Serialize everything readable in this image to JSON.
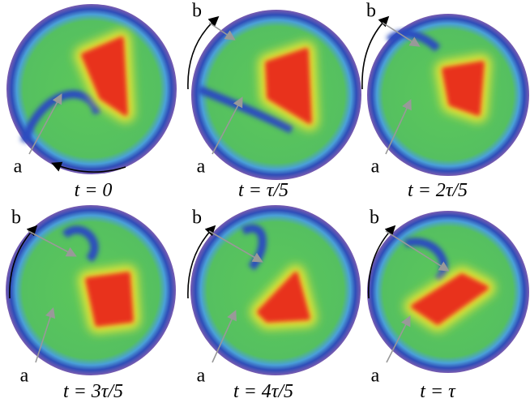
{
  "figure": {
    "panels": [
      {
        "caption": "t = 0",
        "labels": [
          "a"
        ]
      },
      {
        "caption": "t = τ/5",
        "labels": [
          "a",
          "b"
        ]
      },
      {
        "caption": "t = 2τ/5",
        "labels": [
          "a",
          "b"
        ]
      },
      {
        "caption": "t = 3τ/5",
        "labels": [
          "a",
          "b"
        ]
      },
      {
        "caption": "t = 4τ/5",
        "labels": [
          "a",
          "b"
        ]
      },
      {
        "caption": "t = τ",
        "labels": [
          "a",
          "b"
        ]
      }
    ]
  }
}
